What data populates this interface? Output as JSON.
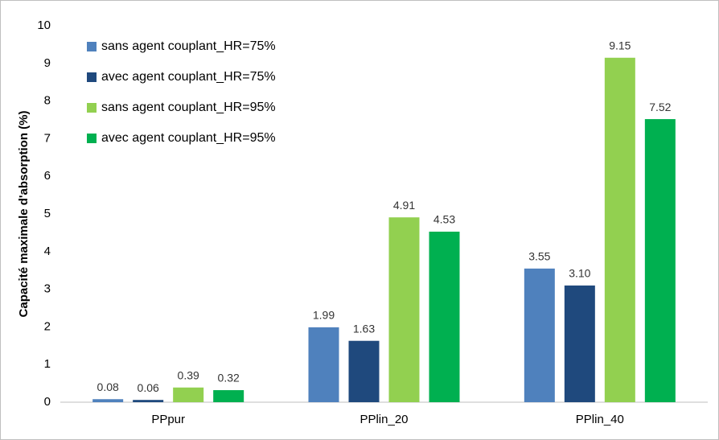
{
  "chart_data": {
    "type": "bar",
    "ylabel": "Capacité maximale d'absorption (%)",
    "categories": [
      "PPpur",
      "PPlin_20",
      "PPlin_40"
    ],
    "series": [
      {
        "name": "sans agent couplant_HR=75%",
        "color": "#4f81bd",
        "values": [
          0.08,
          1.99,
          3.55
        ],
        "value_labels": [
          "0.08",
          "1.99",
          "3.55"
        ]
      },
      {
        "name": "avec agent couplant_HR=75%",
        "color": "#1f497d",
        "values": [
          0.06,
          1.63,
          3.1
        ],
        "value_labels": [
          "0.06",
          "1.63",
          "3.10"
        ]
      },
      {
        "name": "sans agent couplant_HR=95%",
        "color": "#92d050",
        "values": [
          0.39,
          4.91,
          9.15
        ],
        "value_labels": [
          "0.39",
          "4.91",
          "9.15"
        ]
      },
      {
        "name": "avec agent couplant_HR=95%",
        "color": "#00b050",
        "values": [
          0.32,
          4.53,
          7.52
        ],
        "value_labels": [
          "0.32",
          "4.53",
          "7.52"
        ]
      }
    ],
    "ylim": [
      0,
      10
    ],
    "yticks": [
      0,
      1,
      2,
      3,
      4,
      5,
      6,
      7,
      8,
      9,
      10
    ],
    "grid": false,
    "legend": "top-left"
  }
}
